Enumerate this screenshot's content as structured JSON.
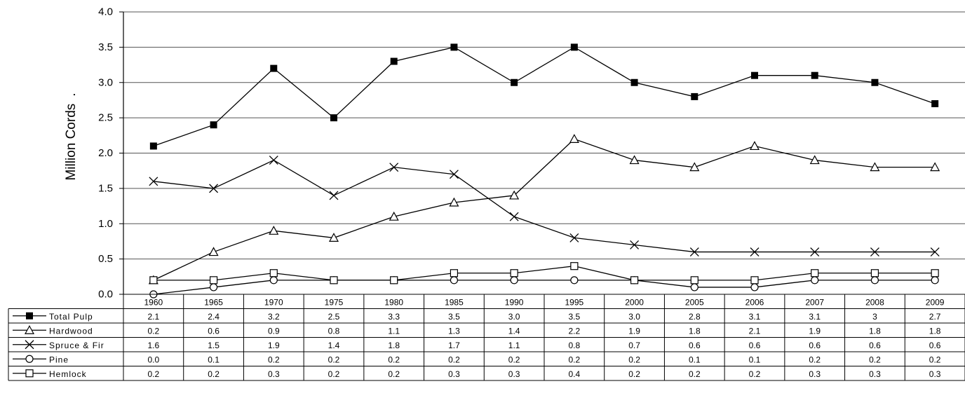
{
  "chart_data": {
    "type": "line",
    "title": "",
    "xlabel": "",
    "ylabel": "Million Cords",
    "ylabel_suffix": ".",
    "ylim": [
      0,
      4.0
    ],
    "yticks": [
      "0.0",
      "0.5",
      "1.0",
      "1.5",
      "2.0",
      "2.5",
      "3.0",
      "3.5",
      "4.0"
    ],
    "grid": true,
    "legend": "data table below chart",
    "categories": [
      "1960",
      "1965",
      "1970",
      "1975",
      "1980",
      "1985",
      "1990",
      "1995",
      "2000",
      "2005",
      "2006",
      "2007",
      "2008",
      "2009"
    ],
    "series": [
      {
        "name": "Total Pulp",
        "marker": "filled-square",
        "values": [
          2.1,
          2.4,
          3.2,
          2.5,
          3.3,
          3.5,
          3.0,
          3.5,
          3.0,
          2.8,
          3.1,
          3.1,
          3.0,
          2.7
        ],
        "labels": [
          "2.1",
          "2.4",
          "3.2",
          "2.5",
          "3.3",
          "3.5",
          "3.0",
          "3.5",
          "3.0",
          "2.8",
          "3.1",
          "3.1",
          "3",
          "2.7"
        ]
      },
      {
        "name": "Hardwood",
        "marker": "triangle",
        "values": [
          0.2,
          0.6,
          0.9,
          0.8,
          1.1,
          1.3,
          1.4,
          2.2,
          1.9,
          1.8,
          2.1,
          1.9,
          1.8,
          1.8
        ],
        "labels": [
          "0.2",
          "0.6",
          "0.9",
          "0.8",
          "1.1",
          "1.3",
          "1.4",
          "2.2",
          "1.9",
          "1.8",
          "2.1",
          "1.9",
          "1.8",
          "1.8"
        ]
      },
      {
        "name": "Spruce & Fir",
        "marker": "cross",
        "values": [
          1.6,
          1.5,
          1.9,
          1.4,
          1.8,
          1.7,
          1.1,
          0.8,
          0.7,
          0.6,
          0.6,
          0.6,
          0.6,
          0.6
        ],
        "labels": [
          "1.6",
          "1.5",
          "1.9",
          "1.4",
          "1.8",
          "1.7",
          "1.1",
          "0.8",
          "0.7",
          "0.6",
          "0.6",
          "0.6",
          "0.6",
          "0.6"
        ]
      },
      {
        "name": "Pine",
        "marker": "circle",
        "values": [
          0.0,
          0.1,
          0.2,
          0.2,
          0.2,
          0.2,
          0.2,
          0.2,
          0.2,
          0.1,
          0.1,
          0.2,
          0.2,
          0.2
        ],
        "labels": [
          "0.0",
          "0.1",
          "0.2",
          "0.2",
          "0.2",
          "0.2",
          "0.2",
          "0.2",
          "0.2",
          "0.1",
          "0.1",
          "0.2",
          "0.2",
          "0.2"
        ]
      },
      {
        "name": "Hemlock",
        "marker": "open-square",
        "values": [
          0.2,
          0.2,
          0.3,
          0.2,
          0.2,
          0.3,
          0.3,
          0.4,
          0.2,
          0.2,
          0.2,
          0.3,
          0.3,
          0.3
        ],
        "labels": [
          "0.2",
          "0.2",
          "0.3",
          "0.2",
          "0.2",
          "0.3",
          "0.3",
          "0.4",
          "0.2",
          "0.2",
          "0.2",
          "0.3",
          "0.3",
          "0.3"
        ]
      }
    ]
  },
  "colors": {
    "ink": "#000000",
    "background": "#ffffff"
  }
}
